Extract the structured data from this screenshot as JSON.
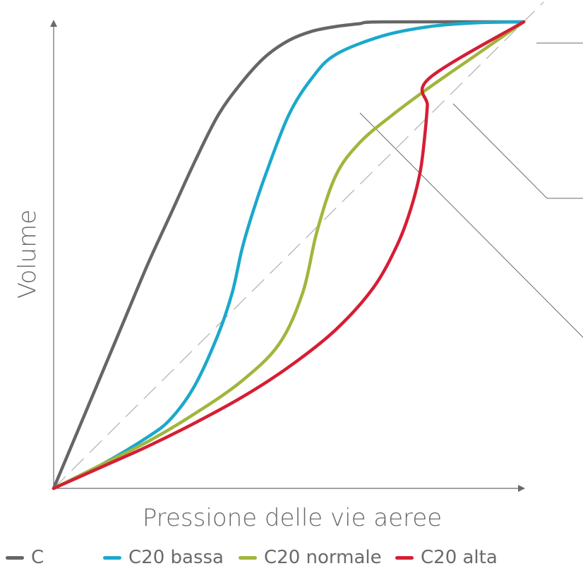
{
  "chart_data": {
    "type": "line",
    "xlabel": "Pressione delle vie aeree",
    "ylabel": "Volume",
    "xlim": [
      0,
      1
    ],
    "ylim": [
      0,
      1
    ],
    "grid": false,
    "legend_position": "bottom",
    "reference_line": {
      "from": [
        0,
        0
      ],
      "to": [
        1,
        1
      ],
      "style": "dashed",
      "color": "#b5b5b5"
    },
    "series": [
      {
        "name": "C",
        "color": "#666666",
        "points": [
          [
            0,
            0
          ],
          [
            0.05,
            0.12
          ],
          [
            0.1,
            0.24
          ],
          [
            0.15,
            0.36
          ],
          [
            0.2,
            0.48
          ],
          [
            0.25,
            0.59
          ],
          [
            0.3,
            0.7
          ],
          [
            0.35,
            0.8
          ],
          [
            0.4,
            0.87
          ],
          [
            0.45,
            0.925
          ],
          [
            0.5,
            0.96
          ],
          [
            0.55,
            0.98
          ],
          [
            0.6,
            0.99
          ],
          [
            0.65,
            0.996
          ],
          [
            0.7,
            1.0
          ],
          [
            1.0,
            1.0
          ]
        ]
      },
      {
        "name": "C20 bassa",
        "color": "#1ba8cc",
        "points": [
          [
            0,
            0
          ],
          [
            0.1,
            0.05
          ],
          [
            0.2,
            0.11
          ],
          [
            0.25,
            0.15
          ],
          [
            0.3,
            0.22
          ],
          [
            0.35,
            0.33
          ],
          [
            0.38,
            0.42
          ],
          [
            0.4,
            0.51
          ],
          [
            0.42,
            0.58
          ],
          [
            0.45,
            0.67
          ],
          [
            0.5,
            0.8
          ],
          [
            0.55,
            0.88
          ],
          [
            0.6,
            0.93
          ],
          [
            0.7,
            0.97
          ],
          [
            0.8,
            0.99
          ],
          [
            0.9,
            0.998
          ],
          [
            1.0,
            1.0
          ]
        ]
      },
      {
        "name": "C20 normale",
        "color": "#a0b63c",
        "points": [
          [
            0,
            0
          ],
          [
            0.1,
            0.05
          ],
          [
            0.2,
            0.1
          ],
          [
            0.3,
            0.16
          ],
          [
            0.4,
            0.23
          ],
          [
            0.48,
            0.31
          ],
          [
            0.53,
            0.42
          ],
          [
            0.56,
            0.55
          ],
          [
            0.6,
            0.67
          ],
          [
            0.65,
            0.74
          ],
          [
            0.72,
            0.8
          ],
          [
            0.8,
            0.86
          ],
          [
            0.9,
            0.93
          ],
          [
            1.0,
            1.0
          ]
        ]
      },
      {
        "name": "C20 alta",
        "color": "#d51e35",
        "points": [
          [
            0,
            0
          ],
          [
            0.1,
            0.045
          ],
          [
            0.2,
            0.09
          ],
          [
            0.3,
            0.14
          ],
          [
            0.4,
            0.195
          ],
          [
            0.5,
            0.26
          ],
          [
            0.6,
            0.34
          ],
          [
            0.68,
            0.43
          ],
          [
            0.73,
            0.52
          ],
          [
            0.76,
            0.6
          ],
          [
            0.78,
            0.68
          ],
          [
            0.79,
            0.76
          ],
          [
            0.795,
            0.82
          ],
          [
            0.8,
            0.88
          ],
          [
            1.0,
            1.0
          ]
        ]
      }
    ],
    "callouts": [
      {
        "from": [
          0.65,
          0.98
        ],
        "to": [
          1.2,
          0.98
        ]
      },
      {
        "from": [
          0.85,
          0.82
        ],
        "to": [
          1.2,
          0.62
        ]
      },
      {
        "from": [
          0.65,
          0.8
        ],
        "to": [
          1.2,
          0.31
        ]
      },
      {
        "from": [
          0.65,
          0.8
        ],
        "to": [
          1.2,
          0.29
        ]
      }
    ]
  }
}
